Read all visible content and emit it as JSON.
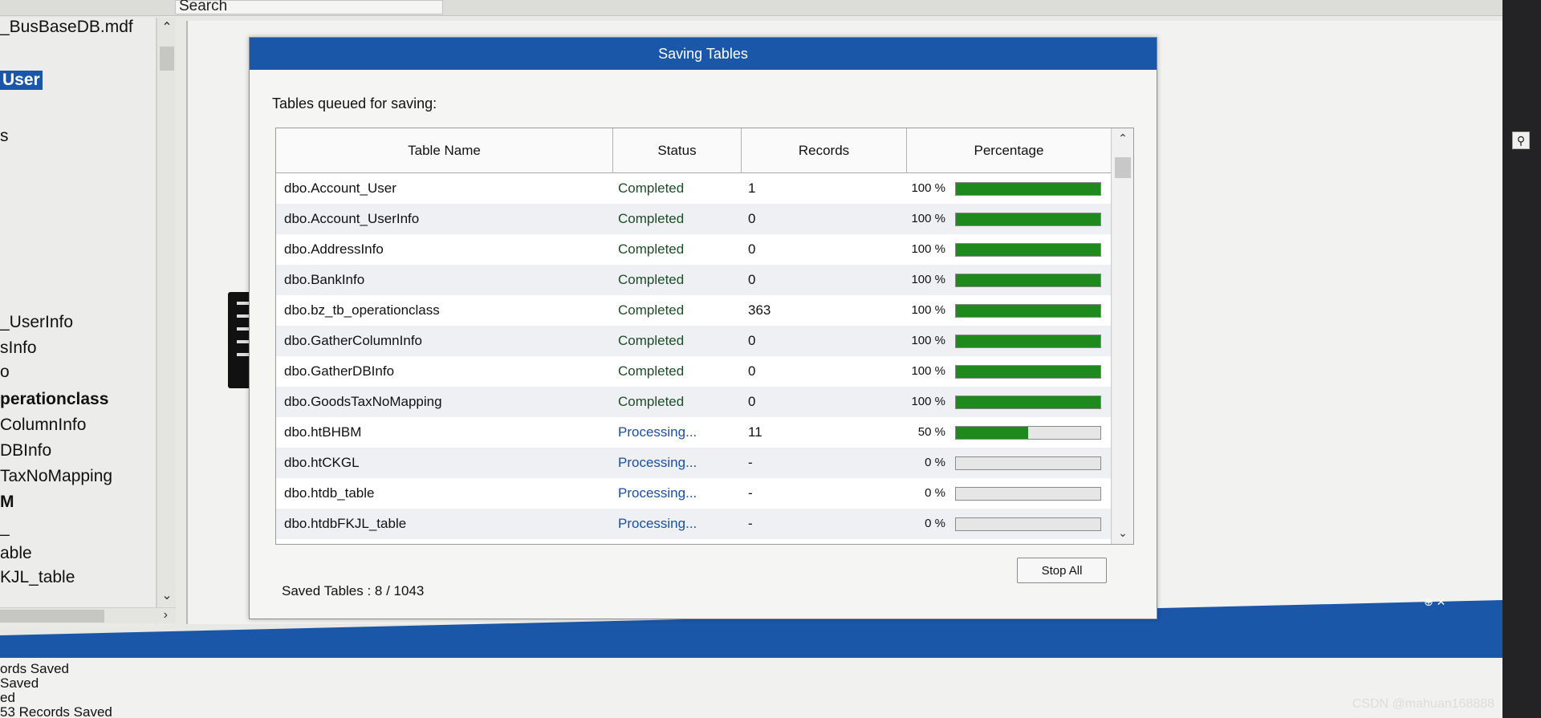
{
  "app": {
    "search_label": "Search",
    "tree": {
      "items": [
        {
          "label": "_BusBaseDB.mdf",
          "selected": false,
          "bold": false
        },
        {
          "label": "User",
          "selected": true,
          "bold": true
        },
        {
          "label": "s",
          "selected": false,
          "bold": false
        },
        {
          "label": "_UserInfo",
          "selected": false,
          "bold": false
        },
        {
          "label": "sInfo",
          "selected": false,
          "bold": false
        },
        {
          "label": "o",
          "selected": false,
          "bold": false
        },
        {
          "label": "perationclass",
          "selected": false,
          "bold": true
        },
        {
          "label": "ColumnInfo",
          "selected": false,
          "bold": false
        },
        {
          "label": "DBInfo",
          "selected": false,
          "bold": false
        },
        {
          "label": "TaxNoMapping",
          "selected": false,
          "bold": false
        },
        {
          "label": "M",
          "selected": false,
          "bold": true
        },
        {
          "label": "_",
          "selected": false,
          "bold": false
        },
        {
          "label": "able",
          "selected": false,
          "bold": false
        },
        {
          "label": "KJL_table",
          "selected": false,
          "bold": false
        }
      ]
    },
    "output_lines": [
      "ords Saved",
      "Saved",
      "ed",
      "53 Records Saved"
    ],
    "watermark": "CSDN @mahuan168888"
  },
  "dialog": {
    "title": "Saving Tables",
    "queue_label": "Tables queued for saving:",
    "columns": {
      "name": "Table Name",
      "status": "Status",
      "records": "Records",
      "percentage": "Percentage"
    },
    "rows": [
      {
        "name": "dbo.Account_User",
        "status": "Completed",
        "records": "1",
        "percent": "100 %",
        "progress": 100
      },
      {
        "name": "dbo.Account_UserInfo",
        "status": "Completed",
        "records": "0",
        "percent": "100 %",
        "progress": 100
      },
      {
        "name": "dbo.AddressInfo",
        "status": "Completed",
        "records": "0",
        "percent": "100 %",
        "progress": 100
      },
      {
        "name": "dbo.BankInfo",
        "status": "Completed",
        "records": "0",
        "percent": "100 %",
        "progress": 100
      },
      {
        "name": "dbo.bz_tb_operationclass",
        "status": "Completed",
        "records": "363",
        "percent": "100 %",
        "progress": 100
      },
      {
        "name": "dbo.GatherColumnInfo",
        "status": "Completed",
        "records": "0",
        "percent": "100 %",
        "progress": 100
      },
      {
        "name": "dbo.GatherDBInfo",
        "status": "Completed",
        "records": "0",
        "percent": "100 %",
        "progress": 100
      },
      {
        "name": "dbo.GoodsTaxNoMapping",
        "status": "Completed",
        "records": "0",
        "percent": "100 %",
        "progress": 100
      },
      {
        "name": "dbo.htBHBM",
        "status": "Processing...",
        "records": "11",
        "percent": "50 %",
        "progress": 50
      },
      {
        "name": "dbo.htCKGL",
        "status": "Processing...",
        "records": "-",
        "percent": "0 %",
        "progress": 0
      },
      {
        "name": "dbo.htdb_table",
        "status": "Processing...",
        "records": "-",
        "percent": "0 %",
        "progress": 0
      },
      {
        "name": "dbo.htdbFKJL_table",
        "status": "Processing...",
        "records": "-",
        "percent": "0 %",
        "progress": 0
      }
    ],
    "saved_label": "Saved Tables : 8 / 1043",
    "stop_button": "Stop All"
  },
  "colors": {
    "title_bar": "#1b57a8",
    "progress_fill": "#1e8a1e",
    "completed_text": "#1c4d26",
    "processing_text": "#1b4fa0"
  },
  "icons": {
    "tree_scroll_up": "chevron-up-icon",
    "tree_scroll_down": "chevron-down-icon",
    "tree_scroll_right": "chevron-right-icon",
    "grid_scroll_up": "chevron-up-icon",
    "grid_scroll_down": "chevron-down-icon",
    "search": "search-icon",
    "pin": "pin-icon",
    "close": "close-icon"
  }
}
